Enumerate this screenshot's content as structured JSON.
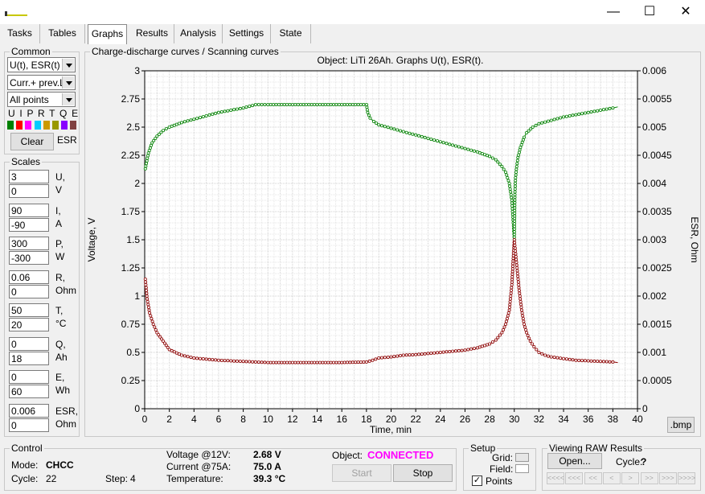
{
  "window": {
    "minimize": "—",
    "maximize": "☐",
    "close": "✕"
  },
  "tabs": [
    "Tasks",
    "Tables",
    "Graphs",
    "Results",
    "Analysis",
    "Settings",
    "State"
  ],
  "common": {
    "title": "Common",
    "graph_select": "U(t), ESR(t)",
    "mode_select": "Curr.+ prev.L",
    "points_select": "All points",
    "letters": "U I P R T Q E",
    "swatch_colors": [
      "#008000",
      "#ff0000",
      "#ff00ff",
      "#00ccff",
      "#cc9900",
      "#999900",
      "#8800ff",
      "#804040"
    ],
    "clear_button": "Clear",
    "esr_label": "ESR"
  },
  "scales": {
    "title": "Scales",
    "rows": [
      {
        "max": "3",
        "min": "0",
        "name": "U,",
        "unit": "V"
      },
      {
        "max": "90",
        "min": "-90",
        "name": "I,",
        "unit": "A"
      },
      {
        "max": "300",
        "min": "-300",
        "name": "P,",
        "unit": "W"
      },
      {
        "max": "0.06",
        "min": "0",
        "name": "R,",
        "unit": "Ohm"
      },
      {
        "max": "50",
        "min": "20",
        "name": "T,",
        "unit": "°C"
      },
      {
        "max": "0",
        "min": "18",
        "name": "Q,",
        "unit": "Ah"
      },
      {
        "max": "0",
        "min": "60",
        "name": "E,",
        "unit": "Wh"
      },
      {
        "max": "0.006",
        "min": "0",
        "name": "ESR,",
        "unit": "Ohm"
      }
    ]
  },
  "graph_panel": {
    "title": "Charge-discharge curves / Scanning curves",
    "bmp_button": ".bmp"
  },
  "chart_data": {
    "type": "line",
    "title": "Object: LiTi 26Ah. Graphs U(t), ESR(t).",
    "xlabel": "Time, min",
    "ylabel": "Voltage, V",
    "y2label": "ESR, Ohm",
    "xlim": [
      0,
      40
    ],
    "ylim": [
      0,
      3
    ],
    "y2lim": [
      0,
      0.006
    ],
    "x_ticks": [
      "0",
      "2",
      "4",
      "6",
      "8",
      "10",
      "12",
      "14",
      "16",
      "18",
      "20",
      "22",
      "24",
      "26",
      "28",
      "30",
      "32",
      "34",
      "36",
      "38",
      "40"
    ],
    "y_ticks": [
      "0",
      "0.25",
      "0.5",
      "0.75",
      "1",
      "1.25",
      "1.5",
      "1.75",
      "2",
      "2.25",
      "2.5",
      "2.75",
      "3"
    ],
    "y2_ticks": [
      "0",
      "0.0005",
      "0.001",
      "0.0015",
      "0.002",
      "0.0025",
      "0.003",
      "0.0035",
      "0.004",
      "0.0045",
      "0.005",
      "0.0055",
      "0.006"
    ],
    "grid": true,
    "series": [
      {
        "axis": "left",
        "color": "#008000",
        "x": [
          0.05,
          0.3,
          0.6,
          1.0,
          1.5,
          2,
          3,
          4,
          5,
          6,
          7,
          8,
          9,
          10,
          12,
          14,
          16,
          18,
          18.1,
          18.3,
          18.6,
          19,
          20,
          21,
          22,
          23,
          24,
          25,
          26,
          27,
          28,
          28.5,
          29,
          29.3,
          29.6,
          29.8,
          29.95,
          30.0,
          30.05,
          30.1,
          30.2,
          30.3,
          30.5,
          30.8,
          31,
          31.5,
          32,
          33,
          34,
          35,
          36,
          37,
          38,
          38.4
        ],
        "y": [
          2.13,
          2.27,
          2.36,
          2.42,
          2.47,
          2.5,
          2.54,
          2.57,
          2.6,
          2.63,
          2.65,
          2.67,
          2.7,
          2.7,
          2.7,
          2.7,
          2.7,
          2.7,
          2.63,
          2.58,
          2.55,
          2.52,
          2.49,
          2.46,
          2.43,
          2.4,
          2.37,
          2.34,
          2.31,
          2.28,
          2.24,
          2.21,
          2.15,
          2.1,
          2.0,
          1.85,
          1.6,
          1.5,
          1.9,
          2.05,
          2.15,
          2.23,
          2.32,
          2.41,
          2.45,
          2.5,
          2.53,
          2.56,
          2.59,
          2.61,
          2.63,
          2.65,
          2.67,
          2.68
        ]
      },
      {
        "axis": "right",
        "color": "#8b0000",
        "x": [
          0.05,
          0.2,
          0.4,
          0.7,
          1.0,
          1.5,
          2,
          3,
          4,
          5,
          6,
          7,
          8,
          9,
          10,
          12,
          14,
          16,
          18,
          18.5,
          19,
          20,
          21,
          22,
          23,
          24,
          25,
          26,
          27,
          28,
          28.5,
          29,
          29.3,
          29.6,
          29.8,
          30.0,
          30.2,
          30.4,
          30.6,
          30.8,
          31,
          31.3,
          31.6,
          32,
          32.5,
          33,
          34,
          35,
          36,
          37,
          38,
          38.4
        ],
        "y": [
          0.0023,
          0.00195,
          0.0017,
          0.0015,
          0.00135,
          0.0012,
          0.00105,
          0.00095,
          0.0009,
          0.00088,
          0.00086,
          0.00085,
          0.00084,
          0.00083,
          0.00082,
          0.00082,
          0.00082,
          0.00082,
          0.00083,
          0.00086,
          0.0009,
          0.00092,
          0.00095,
          0.00096,
          0.00098,
          0.001,
          0.00102,
          0.00104,
          0.00108,
          0.00115,
          0.00122,
          0.00135,
          0.0015,
          0.00175,
          0.0022,
          0.003,
          0.00255,
          0.0021,
          0.00175,
          0.0015,
          0.00135,
          0.0012,
          0.0011,
          0.001,
          0.00095,
          0.00092,
          0.00089,
          0.00086,
          0.00085,
          0.00084,
          0.00083,
          0.00082
        ]
      }
    ]
  },
  "control": {
    "title": "Control",
    "mode_label": "Mode:",
    "mode_value": "CHCC",
    "cycle_label": "Cycle:",
    "cycle_value": "22",
    "step_label": "Step:",
    "step_value": "4",
    "voltage_label": "Voltage @12V:",
    "voltage_value": "2.68 V",
    "current_label": "Current @75A:",
    "current_value": "75.0 A",
    "temp_label": "Temperature:",
    "temp_value": "39.3 °C",
    "object_label": "Object:",
    "object_value": "CONNECTED",
    "start_button": "Start",
    "stop_button": "Stop"
  },
  "setup": {
    "title": "Setup",
    "grid_label": "Grid:",
    "field_label": "Field:",
    "points_label": "Points",
    "points_checked": "✓"
  },
  "raw": {
    "title": "Viewing RAW Results",
    "open_button": "Open...",
    "cycle_label": "Cycle:",
    "cycle_value": "?",
    "nav": [
      "<<<<",
      "<<<",
      "<<",
      "<",
      ">",
      ">>",
      ">>>",
      ">>>>"
    ]
  }
}
